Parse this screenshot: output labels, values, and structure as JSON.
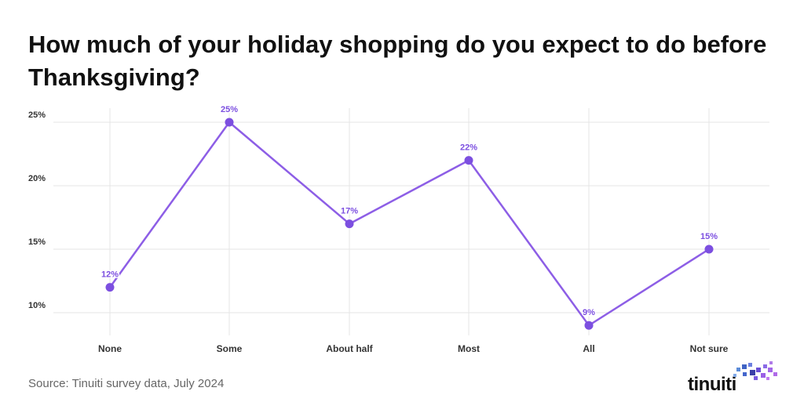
{
  "title": "How much of your holiday shopping do you expect to do before Thanksgiving?",
  "source": "Source: Tinuiti survey data, July 2024",
  "logo": {
    "text": "tinuiti"
  },
  "colors": {
    "line": "#8d5ee6",
    "marker": "#7c4fe0",
    "label": "#7c4fe0",
    "grid": "#e5e5e5",
    "axis_text": "#333333"
  },
  "chart_data": {
    "type": "line",
    "categories": [
      "None",
      "Some",
      "About half",
      "Most",
      "All",
      "Not sure"
    ],
    "values": [
      12,
      25,
      17,
      22,
      9,
      15
    ],
    "data_labels": [
      "12%",
      "25%",
      "17%",
      "22%",
      "9%",
      "15%"
    ],
    "yticks": [
      10,
      15,
      20,
      25
    ],
    "ytick_labels": [
      "10%",
      "15%",
      "20%",
      "25%"
    ],
    "ylim": [
      8,
      26
    ],
    "grid": true,
    "title": "How much of your holiday shopping do you expect to do before Thanksgiving?"
  }
}
